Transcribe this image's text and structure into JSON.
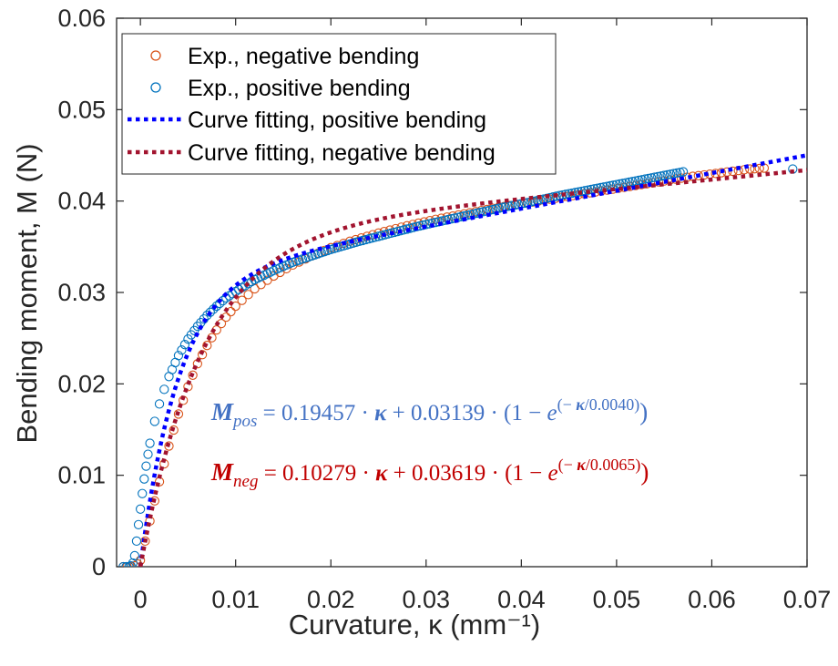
{
  "chart_data": {
    "type": "scatter",
    "title": "",
    "xlabel": "Curvature, κ (mm⁻¹)",
    "ylabel": "Bending moment, M (N)",
    "xlim": [
      -0.0025,
      0.07
    ],
    "ylim": [
      0,
      0.06
    ],
    "x_ticks": [
      0,
      0.01,
      0.02,
      0.03,
      0.04,
      0.05,
      0.06,
      0.07
    ],
    "x_tick_labels": [
      "0",
      "0.01",
      "0.02",
      "0.03",
      "0.04",
      "0.05",
      "0.06",
      "0.07"
    ],
    "y_ticks": [
      0,
      0.01,
      0.02,
      0.03,
      0.04,
      0.05,
      0.06
    ],
    "y_tick_labels": [
      "0",
      "0.01",
      "0.02",
      "0.03",
      "0.04",
      "0.05",
      "0.06"
    ],
    "grid": false,
    "legend_position": "top-left",
    "series": [
      {
        "name": "Exp., negative bending",
        "kind": "markers",
        "color": "#D95319",
        "x": [
          -0.0018,
          -0.0014,
          -0.001,
          -0.0006,
          -0.0003,
          0.0,
          0.0005,
          0.001,
          0.0015,
          0.002,
          0.003,
          0.004,
          0.005,
          0.006,
          0.007,
          0.008,
          0.009,
          0.01,
          0.012,
          0.014,
          0.016,
          0.018,
          0.02,
          0.022,
          0.025,
          0.028,
          0.031,
          0.034,
          0.037,
          0.04,
          0.043,
          0.046,
          0.049,
          0.052,
          0.055,
          0.058,
          0.061,
          0.064,
          0.0655
        ],
        "y": [
          0.0,
          0.0,
          0.0,
          0.0001,
          0.0003,
          0.0007,
          0.0028,
          0.005,
          0.0072,
          0.0093,
          0.0132,
          0.0167,
          0.0197,
          0.0222,
          0.0242,
          0.0259,
          0.0273,
          0.0285,
          0.0304,
          0.0318,
          0.033,
          0.034,
          0.0349,
          0.0356,
          0.0365,
          0.0373,
          0.038,
          0.0386,
          0.0392,
          0.0397,
          0.0402,
          0.0407,
          0.0412,
          0.0417,
          0.0422,
          0.0427,
          0.0431,
          0.0435,
          0.0436
        ]
      },
      {
        "name": "Exp., positive bending",
        "kind": "markers",
        "color": "#0072BD",
        "x": [
          -0.0018,
          -0.0015,
          -0.0012,
          -0.001,
          -0.0008,
          -0.0006,
          -0.0004,
          -0.0002,
          0.0,
          0.0002,
          0.0004,
          0.0006,
          0.0008,
          0.001,
          0.0015,
          0.002,
          0.0025,
          0.003,
          0.004,
          0.005,
          0.006,
          0.007,
          0.008,
          0.009,
          0.01,
          0.012,
          0.014,
          0.016,
          0.018,
          0.02,
          0.023,
          0.026,
          0.029,
          0.032,
          0.035,
          0.038,
          0.041,
          0.044,
          0.047,
          0.05,
          0.053,
          0.056,
          0.057,
          0.0685
        ],
        "y": [
          0.0,
          0.0,
          0.0,
          0.0001,
          0.0004,
          0.0012,
          0.0028,
          0.0046,
          0.0063,
          0.008,
          0.0096,
          0.011,
          0.0123,
          0.0135,
          0.0159,
          0.0178,
          0.0194,
          0.0208,
          0.0231,
          0.0249,
          0.0263,
          0.0275,
          0.0285,
          0.0294,
          0.0301,
          0.0314,
          0.0324,
          0.0333,
          0.034,
          0.0347,
          0.0356,
          0.0364,
          0.0372,
          0.0379,
          0.0386,
          0.0393,
          0.0399,
          0.0406,
          0.0412,
          0.0418,
          0.0424,
          0.043,
          0.0432,
          0.0435
        ]
      },
      {
        "name": "Curve fitting, positive bending",
        "kind": "dotted-line",
        "color": "#0000FF",
        "equation": {
          "a": 0.19457,
          "b": 0.03139,
          "tau": 0.004
        },
        "x_range": [
          0,
          0.07
        ]
      },
      {
        "name": "Curve fitting, negative bending",
        "kind": "dotted-line",
        "color": "#A2142F",
        "equation": {
          "a": 0.10279,
          "b": 0.03619,
          "tau": 0.0065
        },
        "x_range": [
          0,
          0.07
        ]
      }
    ],
    "annotations": [
      {
        "id": "pos",
        "color": "#4472C4",
        "lhs": "M",
        "sub": "pos",
        "rhs": " = 0.19457 · ",
        "kappa": "κ",
        "mid": " + 0.03139 · (1 − ",
        "e": "e",
        "exp_pre": "(− ",
        "exp_kappa": "κ",
        "exp_post": "/0.0040)",
        "close": ")"
      },
      {
        "id": "neg",
        "color": "#C00000",
        "lhs": "M",
        "sub": "neg",
        "rhs": " = 0.10279 · ",
        "kappa": "κ",
        "mid": " + 0.03619 · (1 − ",
        "e": "e",
        "exp_pre": "(− ",
        "exp_kappa": "κ",
        "exp_post": "/0.0065)",
        "close": ")"
      }
    ]
  }
}
